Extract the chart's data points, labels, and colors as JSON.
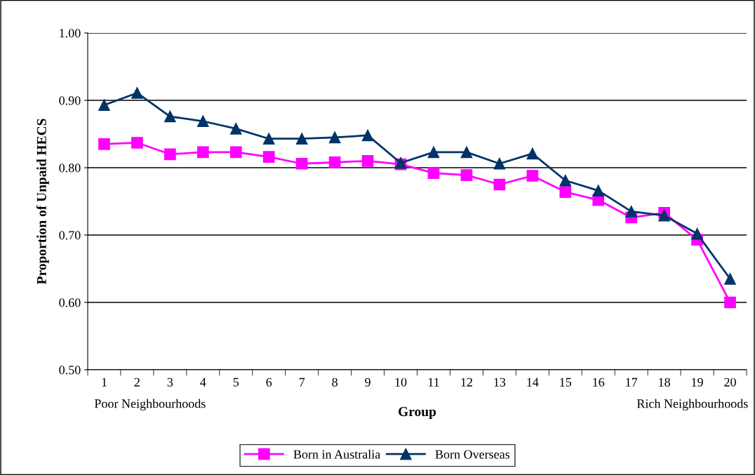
{
  "chart_data": {
    "type": "line",
    "xlabel": "Group",
    "ylabel": "Proportion of Unpaid HECS",
    "categories": [
      "1",
      "2",
      "3",
      "4",
      "5",
      "6",
      "7",
      "8",
      "9",
      "10",
      "11",
      "12",
      "13",
      "14",
      "15",
      "16",
      "17",
      "18",
      "19",
      "20"
    ],
    "series": [
      {
        "name": "Born in Australia",
        "color": "#ff00ff",
        "marker": "square",
        "values": [
          0.835,
          0.837,
          0.82,
          0.823,
          0.823,
          0.816,
          0.806,
          0.808,
          0.81,
          0.805,
          0.792,
          0.789,
          0.775,
          0.788,
          0.764,
          0.752,
          0.726,
          0.733,
          0.693,
          0.6
        ]
      },
      {
        "name": "Born Overseas",
        "color": "#003366",
        "marker": "triangle",
        "values": [
          0.893,
          0.911,
          0.876,
          0.869,
          0.858,
          0.843,
          0.843,
          0.845,
          0.848,
          0.807,
          0.823,
          0.823,
          0.806,
          0.821,
          0.781,
          0.766,
          0.735,
          0.729,
          0.702,
          0.635
        ]
      }
    ],
    "ylim": [
      0.5,
      1.0
    ],
    "yticks": [
      {
        "value": 0.5,
        "label": "0.50"
      },
      {
        "value": 0.6,
        "label": "0.60"
      },
      {
        "value": 0.7,
        "label": "0.70"
      },
      {
        "value": 0.8,
        "label": "0.80"
      },
      {
        "value": 0.9,
        "label": "0.90"
      },
      {
        "value": 1.0,
        "label": "1.00"
      }
    ],
    "grid": "y",
    "legend": "bottom",
    "annotations": [
      "Poor Neighbourhoods",
      "Rich Neighbourhoods"
    ]
  }
}
